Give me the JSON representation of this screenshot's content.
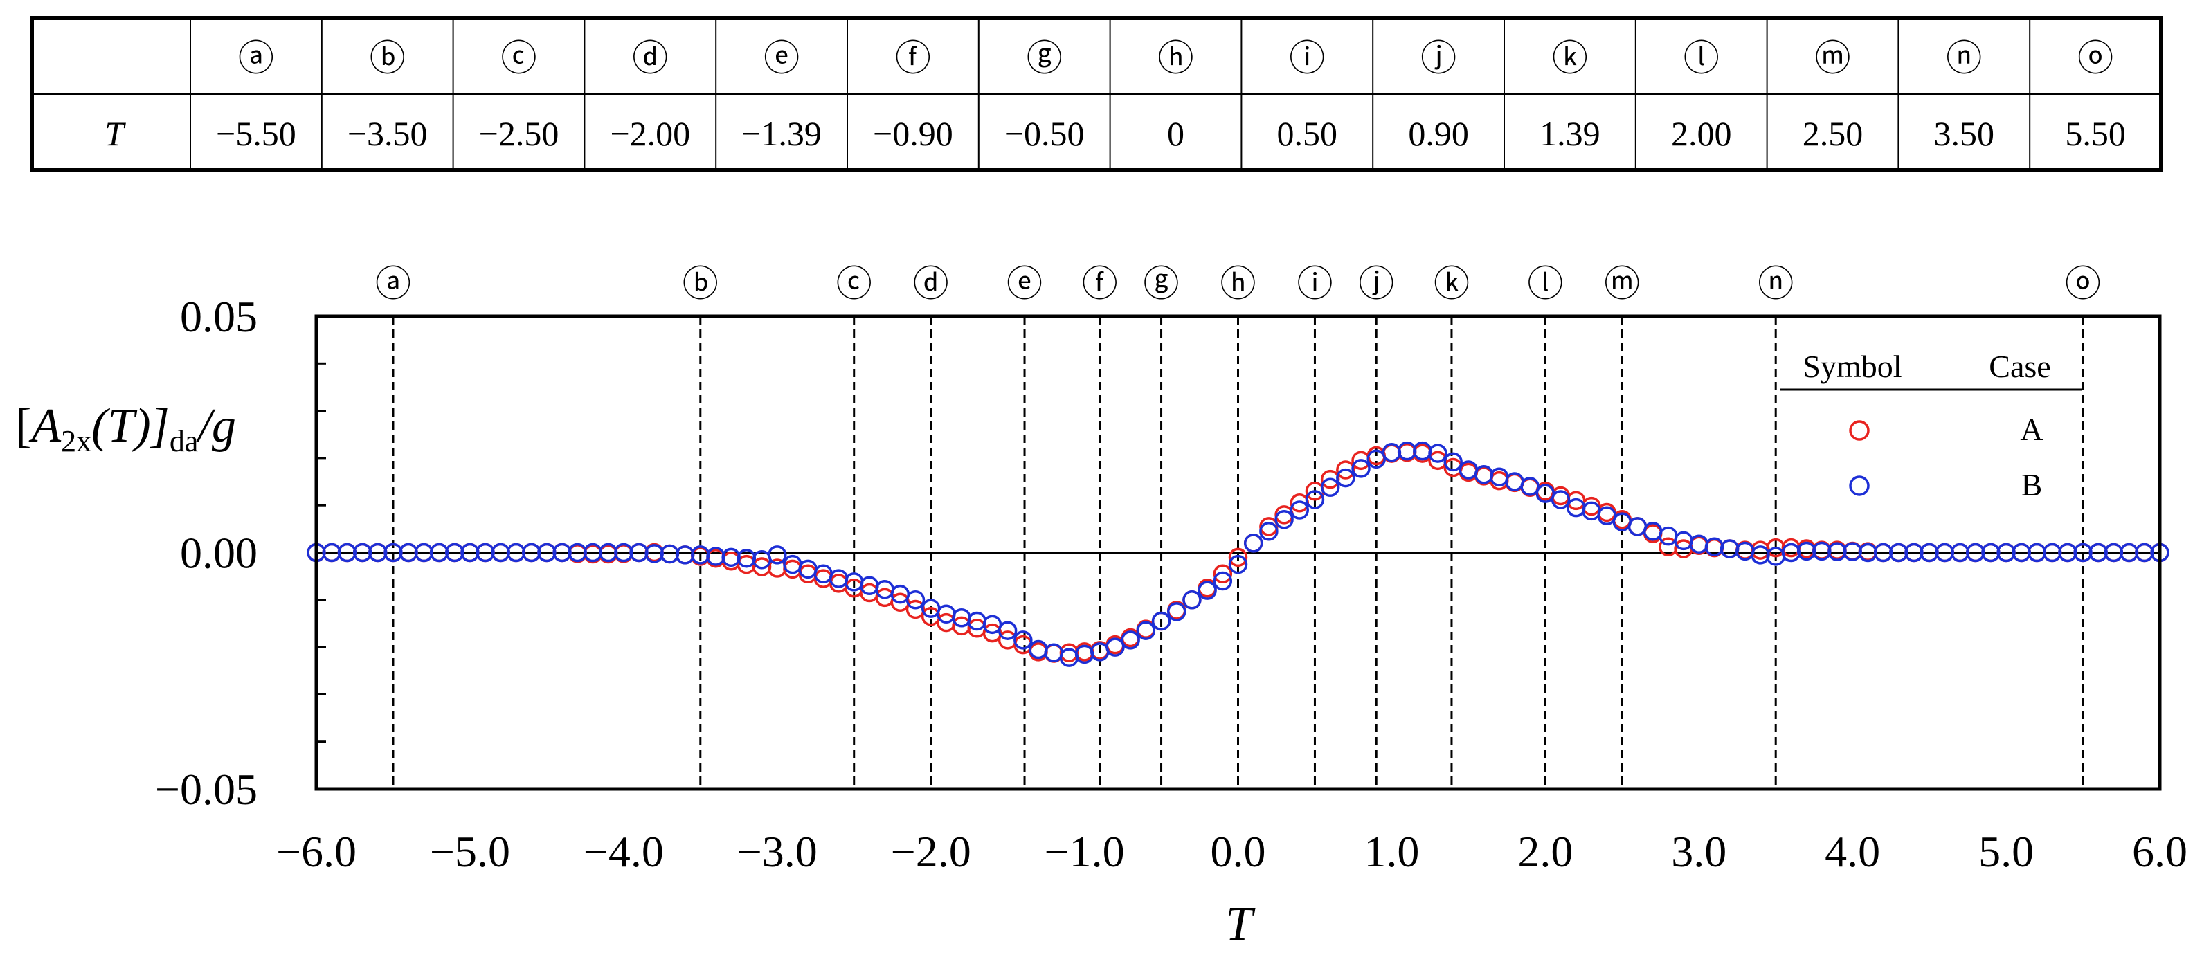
{
  "table": {
    "row_label": "T",
    "columns": [
      "ⓐ",
      "ⓑ",
      "ⓒ",
      "ⓓ",
      "ⓔ",
      "ⓕ",
      "ⓖ",
      "ⓗ",
      "ⓘ",
      "ⓙ",
      "ⓚ",
      "ⓛ",
      "ⓜ",
      "ⓝ",
      "ⓞ"
    ],
    "values": [
      "−5.50",
      "−3.50",
      "−2.50",
      "−2.00",
      "−1.39",
      "−0.90",
      "−0.50",
      "0",
      "0.50",
      "0.90",
      "1.39",
      "2.00",
      "2.50",
      "3.50",
      "5.50"
    ]
  },
  "chart_data": {
    "type": "scatter",
    "xlabel": "T",
    "ylabel": "[A2x(T)]da/g",
    "ylabel_parts": {
      "open": "[",
      "A": "A",
      "sub": "2x",
      "T": "(T)]",
      "da": "da",
      "g": "/g"
    },
    "xlim": [
      -6.0,
      6.0
    ],
    "ylim": [
      -0.05,
      0.05
    ],
    "x_ticks": [
      -6.0,
      -5.0,
      -4.0,
      -3.0,
      -2.0,
      -1.0,
      0.0,
      1.0,
      2.0,
      3.0,
      4.0,
      5.0,
      6.0
    ],
    "x_tick_labels": [
      "−6.0",
      "−5.0",
      "−4.0",
      "−3.0",
      "−2.0",
      "−1.0",
      "0.0",
      "1.0",
      "2.0",
      "3.0",
      "4.0",
      "5.0",
      "6.0"
    ],
    "y_ticks": [
      -0.05,
      0.0,
      0.05
    ],
    "y_tick_labels": [
      "−0.05",
      "0.00",
      "0.05"
    ],
    "y_minor_step": 0.01,
    "zero_line": true,
    "grid": false,
    "legend": {
      "placement": "top-right",
      "header_symbol": "Symbol",
      "header_case": "Case",
      "items": [
        {
          "label": "A",
          "color": "#e8231f"
        },
        {
          "label": "B",
          "color": "#1d2fd6"
        }
      ]
    },
    "markers": [
      {
        "label": "ⓐ",
        "x": -5.5
      },
      {
        "label": "ⓑ",
        "x": -3.5
      },
      {
        "label": "ⓒ",
        "x": -2.5
      },
      {
        "label": "ⓓ",
        "x": -2.0
      },
      {
        "label": "ⓔ",
        "x": -1.39
      },
      {
        "label": "ⓕ",
        "x": -0.9
      },
      {
        "label": "ⓖ",
        "x": -0.5
      },
      {
        "label": "ⓗ",
        "x": 0.0
      },
      {
        "label": "ⓘ",
        "x": 0.5
      },
      {
        "label": "ⓙ",
        "x": 0.9
      },
      {
        "label": "ⓚ",
        "x": 1.39
      },
      {
        "label": "ⓛ",
        "x": 2.0
      },
      {
        "label": "ⓜ",
        "x": 2.5
      },
      {
        "label": "ⓝ",
        "x": 3.5
      },
      {
        "label": "ⓞ",
        "x": 5.5
      }
    ],
    "series": [
      {
        "name": "A",
        "color": "#e8231f",
        "x": [
          -6.0,
          -5.9,
          -5.8,
          -5.7,
          -5.6,
          -5.5,
          -5.4,
          -5.3,
          -5.2,
          -5.1,
          -5.0,
          -4.9,
          -4.8,
          -4.7,
          -4.6,
          -4.5,
          -4.4,
          -4.3,
          -4.2,
          -4.1,
          -4.0,
          -3.9,
          -3.8,
          -3.7,
          -3.6,
          -3.5,
          -3.4,
          -3.3,
          -3.2,
          -3.1,
          -3.0,
          -2.9,
          -2.8,
          -2.7,
          -2.6,
          -2.5,
          -2.4,
          -2.3,
          -2.2,
          -2.1,
          -2.0,
          -1.9,
          -1.8,
          -1.7,
          -1.6,
          -1.5,
          -1.4,
          -1.3,
          -1.2,
          -1.1,
          -1.0,
          -0.9,
          -0.8,
          -0.7,
          -0.6,
          -0.5,
          -0.4,
          -0.3,
          -0.2,
          -0.1,
          0.0,
          0.1,
          0.2,
          0.3,
          0.4,
          0.5,
          0.6,
          0.7,
          0.8,
          0.9,
          1.0,
          1.1,
          1.2,
          1.3,
          1.4,
          1.5,
          1.6,
          1.7,
          1.8,
          1.9,
          2.0,
          2.1,
          2.2,
          2.3,
          2.4,
          2.5,
          2.6,
          2.7,
          2.8,
          2.9,
          3.0,
          3.1,
          3.2,
          3.3,
          3.4,
          3.5,
          3.6,
          3.7,
          3.8,
          3.9,
          4.0,
          4.1,
          4.2,
          4.3,
          4.4,
          4.5,
          4.6,
          4.7,
          4.8,
          4.9,
          5.0,
          5.1,
          5.2,
          5.3,
          5.4,
          5.5,
          5.6,
          5.7,
          5.8,
          5.9,
          6.0
        ],
        "y": [
          0.0,
          0.0,
          0.0,
          0.0,
          0.0,
          0.0,
          0.0,
          0.0,
          0.0,
          0.0,
          0.0,
          0.0,
          0.0,
          0.0,
          0.0,
          0.0,
          0.0,
          -0.0002,
          -0.0003,
          -0.0003,
          -0.0002,
          0.0,
          0.0,
          -0.0003,
          -0.0005,
          -0.0008,
          -0.0012,
          -0.0018,
          -0.0025,
          -0.003,
          -0.0033,
          -0.0035,
          -0.0045,
          -0.0055,
          -0.0065,
          -0.0075,
          -0.0085,
          -0.0095,
          -0.0105,
          -0.012,
          -0.0135,
          -0.0148,
          -0.0155,
          -0.016,
          -0.017,
          -0.0185,
          -0.0195,
          -0.021,
          -0.0213,
          -0.0212,
          -0.021,
          -0.0207,
          -0.0195,
          -0.018,
          -0.0162,
          -0.0145,
          -0.0122,
          -0.01,
          -0.0075,
          -0.0045,
          -0.001,
          0.002,
          0.0055,
          0.008,
          0.0105,
          0.013,
          0.0155,
          0.0175,
          0.0195,
          0.0205,
          0.021,
          0.0212,
          0.021,
          0.0195,
          0.018,
          0.017,
          0.0162,
          0.0152,
          0.0148,
          0.0138,
          0.013,
          0.012,
          0.011,
          0.0098,
          0.0085,
          0.007,
          0.0055,
          0.004,
          0.0012,
          0.0008,
          0.0015,
          0.001,
          0.0008,
          0.0005,
          0.0005,
          0.001,
          0.001,
          0.0008,
          0.0005,
          0.0005,
          0.0003,
          0.0002,
          0.0,
          0.0,
          0.0,
          0.0,
          0.0,
          0.0,
          0.0,
          0.0,
          0.0,
          0.0,
          0.0,
          0.0,
          0.0,
          0.0,
          0.0,
          0.0,
          0.0,
          0.0,
          0.0
        ]
      },
      {
        "name": "B",
        "color": "#1d2fd6",
        "x": [
          -6.0,
          -5.9,
          -5.8,
          -5.7,
          -5.6,
          -5.5,
          -5.4,
          -5.3,
          -5.2,
          -5.1,
          -5.0,
          -4.9,
          -4.8,
          -4.7,
          -4.6,
          -4.5,
          -4.4,
          -4.3,
          -4.2,
          -4.1,
          -4.0,
          -3.9,
          -3.8,
          -3.7,
          -3.6,
          -3.5,
          -3.4,
          -3.3,
          -3.2,
          -3.1,
          -3.0,
          -2.9,
          -2.8,
          -2.7,
          -2.6,
          -2.5,
          -2.4,
          -2.3,
          -2.2,
          -2.1,
          -2.0,
          -1.9,
          -1.8,
          -1.7,
          -1.6,
          -1.5,
          -1.4,
          -1.3,
          -1.2,
          -1.1,
          -1.0,
          -0.9,
          -0.8,
          -0.7,
          -0.6,
          -0.5,
          -0.4,
          -0.3,
          -0.2,
          -0.1,
          0.0,
          0.1,
          0.2,
          0.3,
          0.4,
          0.5,
          0.6,
          0.7,
          0.8,
          0.9,
          1.0,
          1.1,
          1.2,
          1.3,
          1.4,
          1.5,
          1.6,
          1.7,
          1.8,
          1.9,
          2.0,
          2.1,
          2.2,
          2.3,
          2.4,
          2.5,
          2.6,
          2.7,
          2.8,
          2.9,
          3.0,
          3.1,
          3.2,
          3.3,
          3.4,
          3.5,
          3.6,
          3.7,
          3.8,
          3.9,
          4.0,
          4.1,
          4.2,
          4.3,
          4.4,
          4.5,
          4.6,
          4.7,
          4.8,
          4.9,
          5.0,
          5.1,
          5.2,
          5.3,
          5.4,
          5.5,
          5.6,
          5.7,
          5.8,
          5.9,
          6.0
        ],
        "y": [
          0.0,
          0.0,
          0.0,
          0.0,
          0.0,
          0.0,
          0.0,
          0.0,
          0.0,
          0.0,
          0.0,
          0.0,
          0.0,
          0.0,
          0.0,
          0.0,
          0.0,
          0.0,
          0.0,
          0.0,
          0.0,
          0.0,
          -0.0002,
          -0.0003,
          -0.0005,
          -0.0005,
          -0.0008,
          -0.001,
          -0.0012,
          -0.0015,
          -0.0005,
          -0.0025,
          -0.0035,
          -0.0045,
          -0.0055,
          -0.0062,
          -0.007,
          -0.0078,
          -0.0088,
          -0.01,
          -0.0118,
          -0.013,
          -0.0138,
          -0.0145,
          -0.0152,
          -0.0165,
          -0.0185,
          -0.0205,
          -0.0212,
          -0.0222,
          -0.0215,
          -0.021,
          -0.02,
          -0.0185,
          -0.0165,
          -0.0145,
          -0.0125,
          -0.01,
          -0.008,
          -0.006,
          -0.0025,
          0.002,
          0.0045,
          0.007,
          0.009,
          0.0112,
          0.0138,
          0.0158,
          0.0178,
          0.0198,
          0.0212,
          0.0215,
          0.0215,
          0.021,
          0.0192,
          0.0175,
          0.0165,
          0.016,
          0.015,
          0.014,
          0.0125,
          0.0112,
          0.0095,
          0.0088,
          0.0078,
          0.0065,
          0.0055,
          0.0045,
          0.0035,
          0.0025,
          0.0018,
          0.0012,
          0.0008,
          0.0003,
          -0.0005,
          -0.0008,
          0.0,
          0.0003,
          0.0003,
          0.0002,
          0.0002,
          0.0,
          0.0,
          0.0,
          0.0,
          0.0,
          0.0,
          0.0,
          0.0,
          0.0,
          0.0,
          0.0,
          0.0,
          0.0,
          0.0,
          0.0,
          0.0,
          0.0,
          0.0,
          0.0,
          0.0
        ]
      }
    ]
  }
}
